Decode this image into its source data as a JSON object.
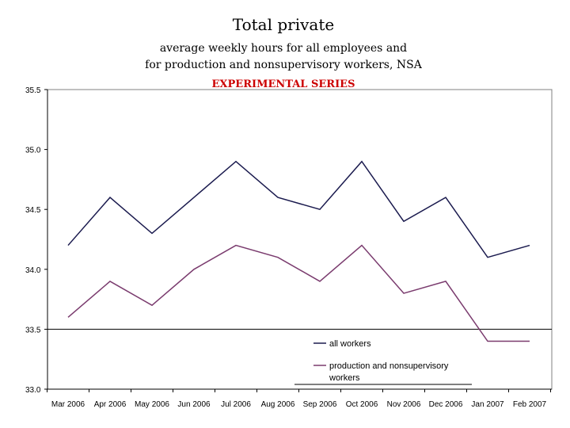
{
  "chart_data": {
    "type": "line",
    "title": "Total private",
    "subtitle_lines": [
      "average weekly hours for all employees and",
      "for production and nonsupervisory workers, NSA"
    ],
    "experimental_label": "EXPERIMENTAL SERIES",
    "categories": [
      "Mar 2006",
      "Apr 2006",
      "May 2006",
      "Jun 2006",
      "Jul 2006",
      "Aug 2006",
      "Sep 2006",
      "Oct 2006",
      "Nov 2006",
      "Dec 2006",
      "Jan 2007",
      "Feb 2007"
    ],
    "series": [
      {
        "name": "all workers",
        "color": "#1a1a4e",
        "values": [
          34.2,
          34.6,
          34.3,
          34.6,
          34.9,
          34.6,
          34.5,
          34.9,
          34.4,
          34.6,
          34.1,
          34.2
        ]
      },
      {
        "name": "production and nonsupervisory workers",
        "legend_lines": [
          "production and nonsupervisory",
          "workers"
        ],
        "color": "#7a3b6e",
        "values": [
          33.6,
          33.9,
          33.7,
          34.0,
          34.2,
          34.1,
          33.9,
          34.2,
          33.8,
          33.9,
          33.4,
          33.4
        ]
      }
    ],
    "ylim": [
      33.0,
      35.5
    ],
    "yticks": [
      "33.0",
      "33.5",
      "34.0",
      "34.5",
      "35.0",
      "35.5"
    ],
    "reference_line": 33.5,
    "legend_position": "bottom-right",
    "colors": {
      "title": "#000000",
      "experimental": "#cc0000",
      "axis": "#000000",
      "frame": "#808080"
    }
  }
}
